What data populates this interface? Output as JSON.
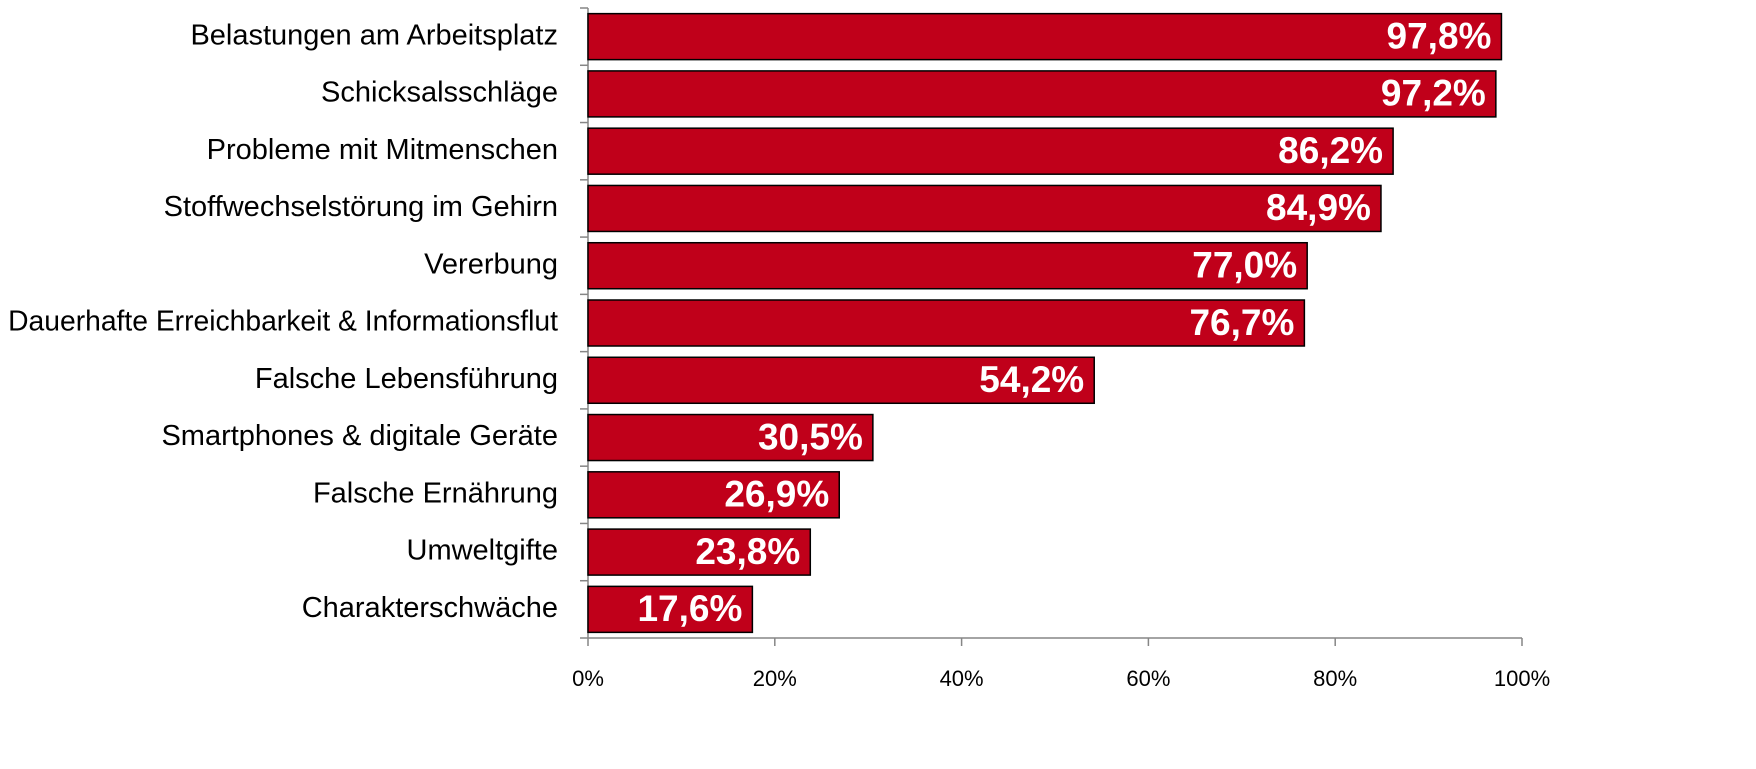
{
  "chart_data": {
    "type": "bar",
    "orientation": "horizontal",
    "categories": [
      "Belastungen am Arbeitsplatz",
      "Schicksalsschläge",
      "Probleme mit Mitmenschen",
      "Stoffwechselstörung im Gehirn",
      "Vererbung",
      "Dauerhafte Erreichbarkeit & Informationsflut",
      "Falsche Lebensführung",
      "Smartphones & digitale Geräte",
      "Falsche Ernährung",
      "Umweltgifte",
      "Charakterschwäche"
    ],
    "values": [
      97.8,
      97.2,
      86.2,
      84.9,
      77.0,
      76.7,
      54.2,
      30.5,
      26.9,
      23.8,
      17.6
    ],
    "value_labels": [
      "97,8%",
      "97,2%",
      "86,2%",
      "84,9%",
      "77,0%",
      "76,7%",
      "54,2%",
      "30,5%",
      "26,9%",
      "23,8%",
      "17,6%"
    ],
    "color": "#c0001a",
    "xlim": [
      0,
      100
    ],
    "xticks": [
      {
        "value": 0,
        "label": "0%"
      },
      {
        "value": 20,
        "label": "20%"
      },
      {
        "value": 40,
        "label": "40%"
      },
      {
        "value": 60,
        "label": "60%"
      },
      {
        "value": 80,
        "label": "80%"
      },
      {
        "value": 100,
        "label": "100%"
      }
    ],
    "grid": false
  }
}
